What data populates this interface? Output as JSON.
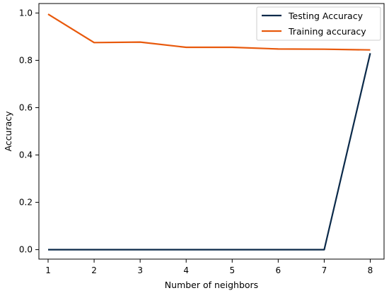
{
  "chart_data": {
    "type": "line",
    "title": "",
    "xlabel": "Number of neighbors",
    "ylabel": "Accuracy",
    "x": [
      1,
      2,
      3,
      4,
      5,
      6,
      7,
      8
    ],
    "xlim": [
      0.8,
      8.3
    ],
    "ylim": [
      -0.04,
      1.04
    ],
    "xticks": [
      "1",
      "2",
      "3",
      "4",
      "5",
      "6",
      "7",
      "8"
    ],
    "yticks": [
      "0.0",
      "0.2",
      "0.4",
      "0.6",
      "0.8",
      "1.0"
    ],
    "grid": false,
    "legend_position": "top-right",
    "series": [
      {
        "name": "Testing Accuracy",
        "color": "#0b2a4a",
        "values": [
          0.0,
          0.0,
          0.0,
          0.0,
          0.0,
          0.0,
          0.0,
          0.83
        ]
      },
      {
        "name": "Training accuracy",
        "color": "#e8590c",
        "values": [
          0.995,
          0.875,
          0.877,
          0.855,
          0.855,
          0.848,
          0.847,
          0.844
        ]
      }
    ]
  }
}
